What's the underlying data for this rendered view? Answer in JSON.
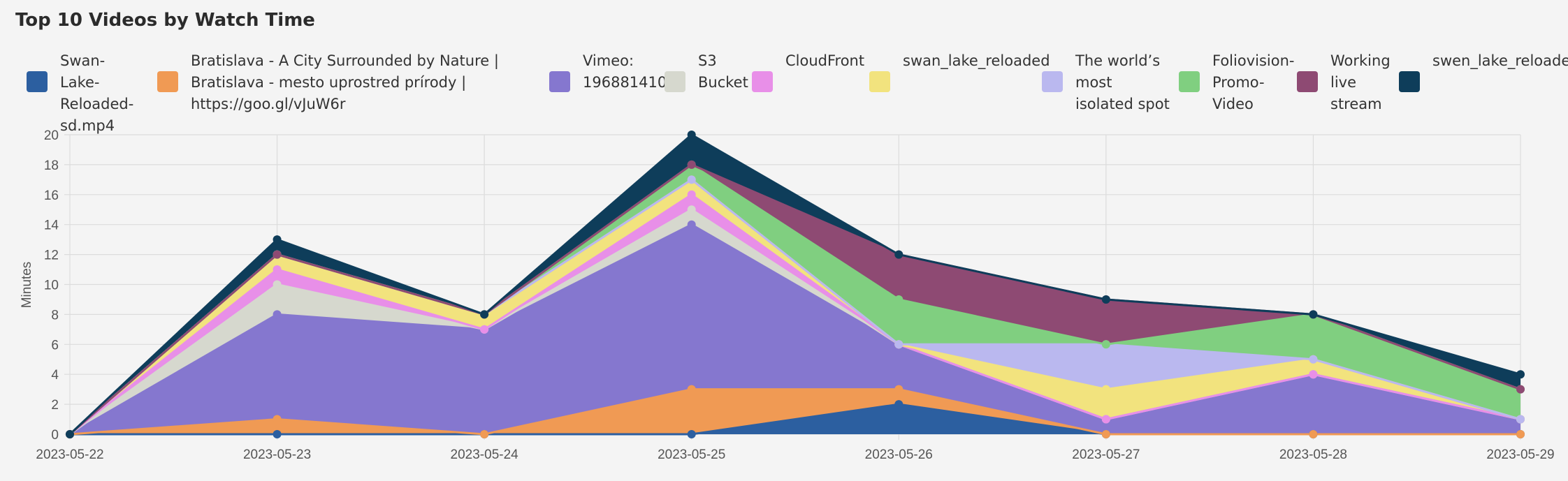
{
  "chart_data": {
    "type": "area",
    "stacked": true,
    "title": "Top 10 Videos by Watch Time",
    "ylabel": "Minutes",
    "xlabel": "",
    "ylim": [
      0,
      20
    ],
    "y_ticks": [
      0,
      2,
      4,
      6,
      8,
      10,
      12,
      14,
      16,
      18,
      20
    ],
    "grid": true,
    "legend_placement": "top",
    "categories": [
      "2023-05-22",
      "2023-05-23",
      "2023-05-24",
      "2023-05-25",
      "2023-05-26",
      "2023-05-27",
      "2023-05-28",
      "2023-05-29"
    ],
    "series": [
      {
        "name": "Swan-Lake-Reloaded-sd.mp4",
        "color": "#2c5fa0",
        "values": [
          0,
          0,
          0,
          0,
          2,
          0,
          0,
          0
        ]
      },
      {
        "name": "Bratislava - A City Surrounded by Nature | Bratislava - mesto uprostred prírody | https://goo.gl/vJuW6r",
        "color": "#f09a54",
        "values": [
          0,
          1,
          0,
          3,
          1,
          0,
          0,
          0
        ]
      },
      {
        "name": "Vimeo: 196881410",
        "color": "#8577cf",
        "values": [
          0,
          7,
          7,
          11,
          3,
          1,
          4,
          1
        ]
      },
      {
        "name": "S3 Bucket",
        "color": "#d6d8ce",
        "values": [
          0,
          2,
          0,
          1,
          0,
          0,
          0,
          0
        ]
      },
      {
        "name": "CloudFront",
        "color": "#e88fe8",
        "values": [
          0,
          1,
          0,
          1,
          0,
          0,
          0,
          0
        ]
      },
      {
        "name": "swan_lake_reloaded",
        "color": "#f2e37e",
        "values": [
          0,
          1,
          1,
          1,
          0,
          2,
          1,
          0
        ]
      },
      {
        "name": "The world’s most isolated spot",
        "color": "#bab8ef",
        "values": [
          0,
          0,
          0,
          0,
          0,
          3,
          0,
          0
        ]
      },
      {
        "name": "Foliovision-Promo-Video",
        "color": "#80cf80",
        "values": [
          0,
          0,
          0,
          1,
          3,
          0,
          3,
          2
        ]
      },
      {
        "name": "Working live stream",
        "color": "#8e4a73",
        "values": [
          0,
          0,
          0,
          0,
          3,
          3,
          0,
          0
        ]
      },
      {
        "name": "swen_lake_reloaded",
        "color": "#0e3d5a",
        "values": [
          0,
          1,
          0,
          2,
          0,
          0,
          0,
          1
        ]
      }
    ]
  }
}
